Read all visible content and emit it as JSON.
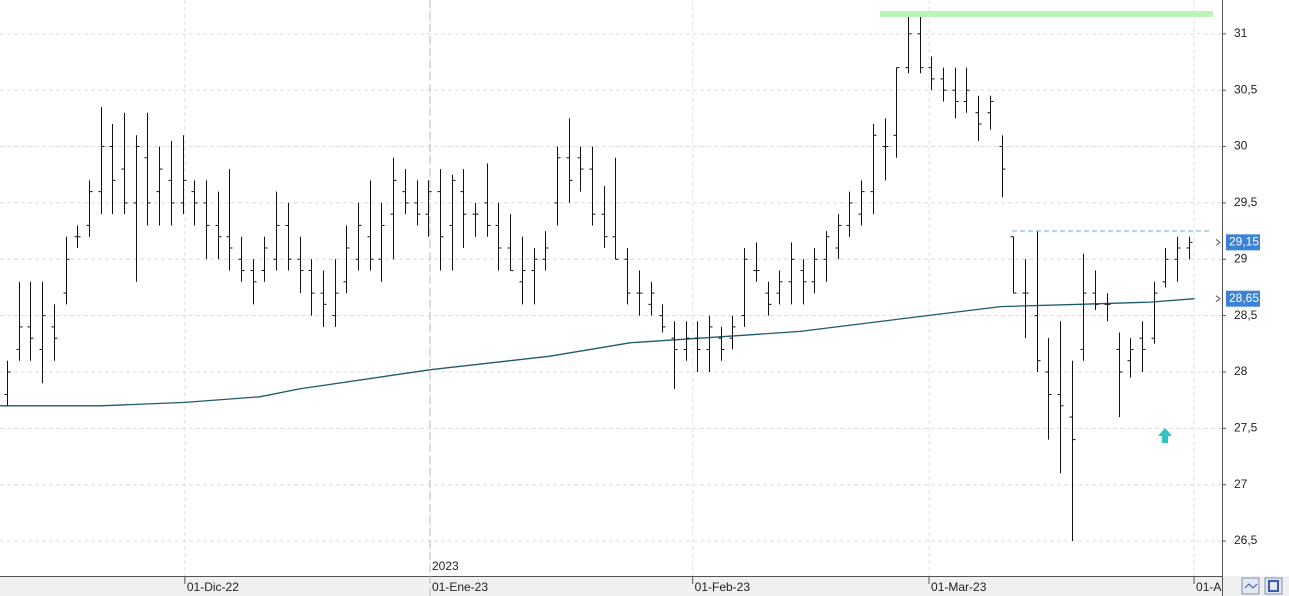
{
  "chart_data": {
    "type": "ohlc",
    "grid": true,
    "color": "#111111",
    "xlim": [
      -0.6,
      103.84
    ],
    "ylim": [
      26.19,
      31.3
    ],
    "xticks": [
      {
        "value": 15.2,
        "label": "01-Dic-22"
      },
      {
        "value": 36.15,
        "label": "01-Ene-23"
      },
      {
        "value": 58.6,
        "label": "01-Feb-23"
      },
      {
        "value": 78.8,
        "label": "01-Mar-23"
      },
      {
        "value": 101.45,
        "label": "01-A"
      }
    ],
    "yticks": [
      {
        "value": 26.5,
        "label": "26,5"
      },
      27,
      {
        "value": 27.5,
        "label": "27,5"
      },
      28,
      {
        "value": 28.5,
        "label": "28,5"
      },
      29,
      {
        "value": 29.5,
        "label": "29,5"
      },
      30,
      {
        "value": 30.5,
        "label": "30,5"
      },
      31
    ],
    "annotations": [
      {
        "text": "2023",
        "x": 36.15
      }
    ],
    "price_labels": [
      {
        "value": 29.15,
        "label": "29,15",
        "color": "#3b82d6"
      },
      {
        "value": 28.65,
        "label": "28,65",
        "color": "#3b82d6"
      }
    ],
    "open": [
      27.8,
      28.2,
      28.4,
      28.2,
      28.4,
      28.7,
      29.2,
      29.3,
      29.6,
      30.0,
      29.8,
      29.5,
      29.9,
      29.6,
      29.7,
      29.5,
      29.6,
      29.5,
      29.3,
      29.2,
      29.0,
      28.9,
      28.9,
      29.0,
      29.3,
      29.0,
      28.9,
      28.7,
      28.5,
      28.8,
      29.0,
      29.2,
      29.0,
      29.4,
      29.6,
      29.5,
      29.4,
      29.6,
      29.3,
      29.6,
      29.4,
      29.5,
      29.3,
      29.1,
      28.8,
      28.9,
      29.0,
      29.5,
      29.9,
      29.9,
      29.8,
      29.4,
      29.2,
      29.0,
      28.7,
      28.6,
      28.5,
      28.3,
      28.2,
      28.3,
      28.2,
      28.3,
      28.3,
      28.5,
      28.9,
      28.7,
      28.7,
      28.8,
      28.9,
      28.8,
      29.0,
      29.1,
      29.3,
      29.4,
      29.6,
      30.0,
      30.1,
      30.7,
      31.0,
      30.7,
      30.6,
      30.5,
      30.4,
      30.3,
      30.3,
      30.0,
      29.2,
      28.7,
      28.5,
      28.0,
      27.8,
      27.6,
      28.2,
      28.7,
      28.6,
      28.2,
      28.1,
      28.3,
      28.3,
      28.8,
      29.0,
      29.1
    ],
    "high": [
      28.1,
      28.8,
      28.8,
      28.8,
      28.6,
      29.2,
      29.3,
      29.7,
      30.35,
      30.2,
      30.3,
      30.1,
      30.3,
      30.0,
      30.05,
      30.1,
      29.7,
      29.7,
      29.6,
      29.8,
      29.2,
      29.0,
      29.2,
      29.6,
      29.5,
      29.2,
      29.0,
      28.9,
      29.0,
      29.3,
      29.5,
      29.7,
      29.5,
      29.9,
      29.8,
      29.7,
      29.7,
      29.8,
      29.75,
      29.8,
      29.5,
      29.85,
      29.5,
      29.4,
      29.2,
      29.1,
      29.25,
      30.0,
      30.25,
      30.0,
      30.0,
      29.65,
      29.9,
      29.1,
      28.9,
      28.8,
      28.6,
      28.45,
      28.45,
      28.45,
      28.5,
      28.4,
      28.5,
      29.1,
      29.15,
      28.8,
      28.9,
      29.15,
      29.0,
      29.1,
      29.25,
      29.4,
      29.6,
      29.7,
      30.2,
      30.25,
      30.7,
      31.15,
      31.15,
      30.8,
      30.7,
      30.7,
      30.7,
      30.45,
      30.45,
      30.1,
      29.2,
      29.0,
      29.25,
      28.3,
      28.45,
      28.1,
      29.05,
      28.9,
      28.7,
      28.35,
      28.3,
      28.45,
      28.8,
      29.1,
      29.2,
      29.2
    ],
    "low": [
      27.7,
      28.1,
      28.1,
      27.9,
      28.1,
      28.6,
      29.1,
      29.2,
      29.4,
      29.4,
      29.4,
      28.8,
      29.3,
      29.3,
      29.3,
      29.4,
      29.3,
      29.0,
      29.0,
      28.9,
      28.8,
      28.6,
      28.8,
      28.9,
      28.9,
      28.7,
      28.5,
      28.4,
      28.4,
      28.7,
      28.9,
      28.9,
      28.8,
      29.0,
      29.4,
      29.3,
      29.2,
      28.9,
      28.9,
      29.1,
      29.2,
      29.2,
      28.9,
      28.9,
      28.6,
      28.6,
      28.9,
      29.3,
      29.5,
      29.6,
      29.3,
      29.1,
      29.0,
      28.6,
      28.5,
      28.5,
      28.35,
      27.85,
      28.1,
      28.0,
      28.0,
      28.1,
      28.2,
      28.4,
      28.8,
      28.5,
      28.6,
      28.6,
      28.6,
      28.7,
      28.8,
      29.0,
      29.2,
      29.3,
      29.4,
      29.7,
      29.9,
      30.65,
      30.65,
      30.5,
      30.4,
      30.25,
      30.3,
      30.05,
      30.15,
      29.55,
      28.7,
      28.3,
      28.0,
      27.4,
      27.1,
      26.5,
      28.1,
      28.55,
      28.45,
      27.6,
      27.95,
      28.0,
      28.25,
      28.75,
      28.8,
      29.0
    ],
    "close": [
      28.0,
      28.4,
      28.3,
      28.5,
      28.3,
      29.0,
      29.2,
      29.6,
      30.0,
      29.7,
      29.5,
      30.0,
      29.5,
      29.8,
      29.5,
      29.7,
      29.5,
      29.3,
      29.2,
      29.1,
      28.9,
      28.8,
      29.1,
      29.3,
      29.0,
      28.9,
      28.7,
      28.6,
      28.7,
      29.1,
      29.3,
      29.0,
      29.3,
      29.7,
      29.5,
      29.4,
      29.6,
      29.2,
      29.7,
      29.4,
      29.4,
      29.3,
      29.1,
      28.9,
      28.9,
      29.0,
      29.1,
      29.9,
      29.7,
      29.8,
      29.4,
      29.2,
      29.0,
      28.7,
      28.7,
      28.7,
      28.4,
      28.2,
      28.3,
      28.2,
      28.4,
      28.2,
      28.4,
      29.0,
      28.9,
      28.6,
      28.8,
      29.0,
      28.8,
      29.0,
      29.2,
      29.3,
      29.5,
      29.6,
      30.1,
      30.0,
      30.7,
      31.0,
      30.7,
      30.6,
      30.5,
      30.4,
      30.5,
      30.2,
      30.4,
      29.8,
      28.7,
      28.7,
      28.1,
      27.8,
      27.7,
      27.4,
      28.7,
      28.6,
      28.6,
      28.0,
      28.2,
      28.2,
      28.7,
      29.0,
      29.1,
      29.15
    ],
    "ma": {
      "color": "#1d5a6a",
      "x": [
        -0.6,
        8,
        15.2,
        21.6,
        25,
        36.2,
        46.4,
        53.3,
        59.2,
        67.8,
        76.3,
        84.9,
        91.7,
        97.7,
        101.5
      ],
      "values": [
        27.7,
        27.7,
        27.73,
        27.78,
        27.85,
        28.02,
        28.14,
        28.26,
        28.3,
        28.36,
        28.47,
        28.58,
        28.6,
        28.62,
        28.65
      ]
    }
  }
}
